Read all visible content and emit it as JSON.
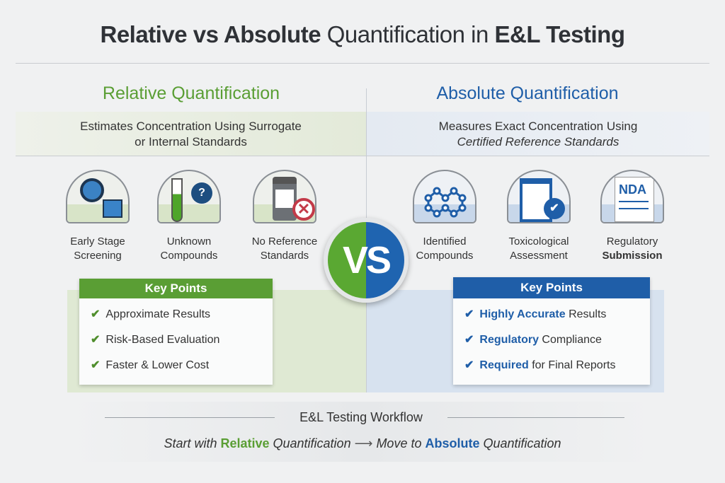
{
  "title": {
    "bold1": "Relative vs Absolute",
    "mid": " Quantification in ",
    "bold2": "E&L Testing"
  },
  "relative": {
    "heading": "Relative Quantification",
    "desc1": "Estimates Concentration Using Surrogate",
    "desc2": "or Internal Standards",
    "icons": [
      {
        "icon": "magnifier-flask-icon",
        "l1": "Early Stage",
        "l2": "Screening"
      },
      {
        "icon": "test-tube-question-icon",
        "l1": "Unknown",
        "l2": "Compounds"
      },
      {
        "icon": "bottle-no-icon",
        "l1": "No Reference",
        "l2": "Standards"
      }
    ],
    "key_title": "Key Points",
    "points": [
      "Approximate Results",
      "Risk-Based Evaluation",
      "Faster & Lower Cost"
    ],
    "color": "#5a9e34"
  },
  "absolute": {
    "heading": "Absolute Quantification",
    "desc1": "Measures Exact Concentration Using",
    "desc2": "Certified Reference Standards",
    "icons": [
      {
        "icon": "molecule-icon",
        "l1": "Identified",
        "l2": "Compounds"
      },
      {
        "icon": "clipboard-check-icon",
        "l1": "Toxicological",
        "l2": "Assessment"
      },
      {
        "icon": "nda-document-icon",
        "l1": "Regulatory",
        "l2": "Submission",
        "doc": "NDA"
      }
    ],
    "key_title": "Key Points",
    "points": [
      {
        "b": "Highly Accurate",
        "r": " Results"
      },
      {
        "b": "Regulatory",
        "r": " Compliance"
      },
      {
        "b": "Required",
        "r": " for Final Reports"
      }
    ],
    "color": "#1f5ea8"
  },
  "vs": "VS",
  "workflow": {
    "title": "E&L Testing Workflow",
    "start": "Start with ",
    "rel_b": "Relative",
    "rel_r": " Quantification",
    "move": "Move to ",
    "abs_b": "Absolute",
    "abs_r": " Quantification"
  }
}
